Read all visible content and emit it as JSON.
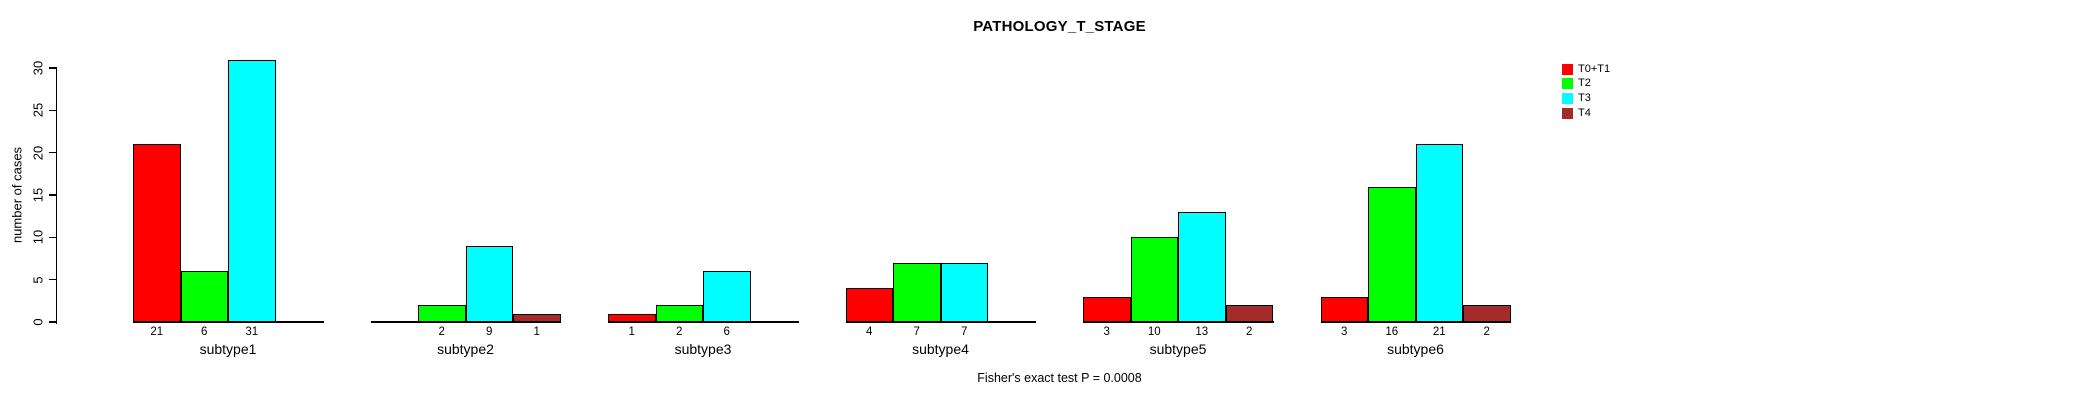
{
  "chart_data": {
    "type": "bar",
    "title": "PATHOLOGY_T_STAGE",
    "xlabel": "",
    "ylabel": "number of cases",
    "ylim": [
      0,
      30
    ],
    "yticks": [
      0,
      5,
      10,
      15,
      20,
      25,
      30
    ],
    "grid": false,
    "legend_position": "top-right",
    "categories": [
      "subtype1",
      "subtype2",
      "subtype3",
      "subtype4",
      "subtype5",
      "subtype6"
    ],
    "series": [
      {
        "name": "T0+T1",
        "color": "#FF0000",
        "values": [
          21,
          0,
          1,
          4,
          3,
          3
        ]
      },
      {
        "name": "T2",
        "color": "#00FF00",
        "values": [
          6,
          2,
          2,
          7,
          10,
          16
        ]
      },
      {
        "name": "T3",
        "color": "#00FFFF",
        "values": [
          31,
          9,
          6,
          7,
          13,
          21
        ]
      },
      {
        "name": "T4",
        "color": "#A52A2A",
        "values": [
          0,
          1,
          0,
          0,
          2,
          2
        ]
      }
    ],
    "bar_value_labels": "nonzero values printed under each bar",
    "footnote": "Fisher's exact test P = 0.0008"
  }
}
